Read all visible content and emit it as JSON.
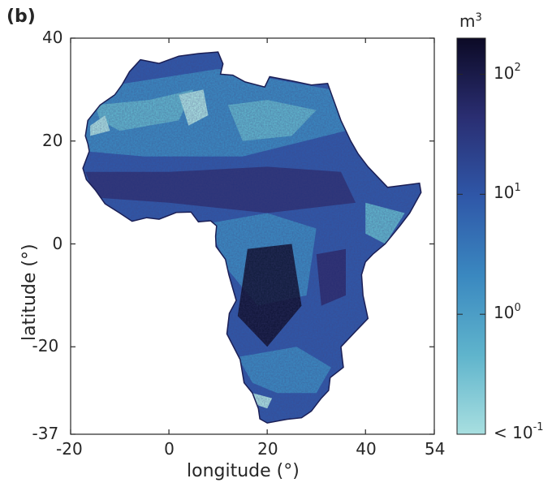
{
  "panel_label": "(b)",
  "x_axis": {
    "label": "longitude (°)",
    "ticks": [
      "-20",
      "0",
      "20",
      "40",
      "54"
    ],
    "range": [
      -20,
      54
    ]
  },
  "y_axis": {
    "label": "latitude (°)",
    "ticks": [
      "40",
      "20",
      "0",
      "-20",
      "-37"
    ],
    "range": [
      -37,
      40
    ]
  },
  "colorbar": {
    "unit": "m",
    "unit_exponent": "3",
    "scale": "log",
    "ticks": [
      {
        "base": "10",
        "exp": "2",
        "prefix": ""
      },
      {
        "base": "10",
        "exp": "1",
        "prefix": ""
      },
      {
        "base": "10",
        "exp": "0",
        "prefix": ""
      },
      {
        "base": "10",
        "exp": "-1",
        "prefix": "< "
      }
    ],
    "colors": [
      "#a8dfe0",
      "#5fb4cc",
      "#3a88c0",
      "#2f57a8",
      "#2a2e72",
      "#0c0a26"
    ]
  },
  "chart_data": {
    "type": "heatmap",
    "map": "Africa",
    "xlabel": "longitude (°)",
    "ylabel": "latitude (°)",
    "xlim": [
      -20,
      54
    ],
    "ylim": [
      -37,
      40
    ],
    "colorbar_label": "m³",
    "colorbar_scale": "log",
    "colorbar_range": [
      0.1,
      200
    ]
  }
}
